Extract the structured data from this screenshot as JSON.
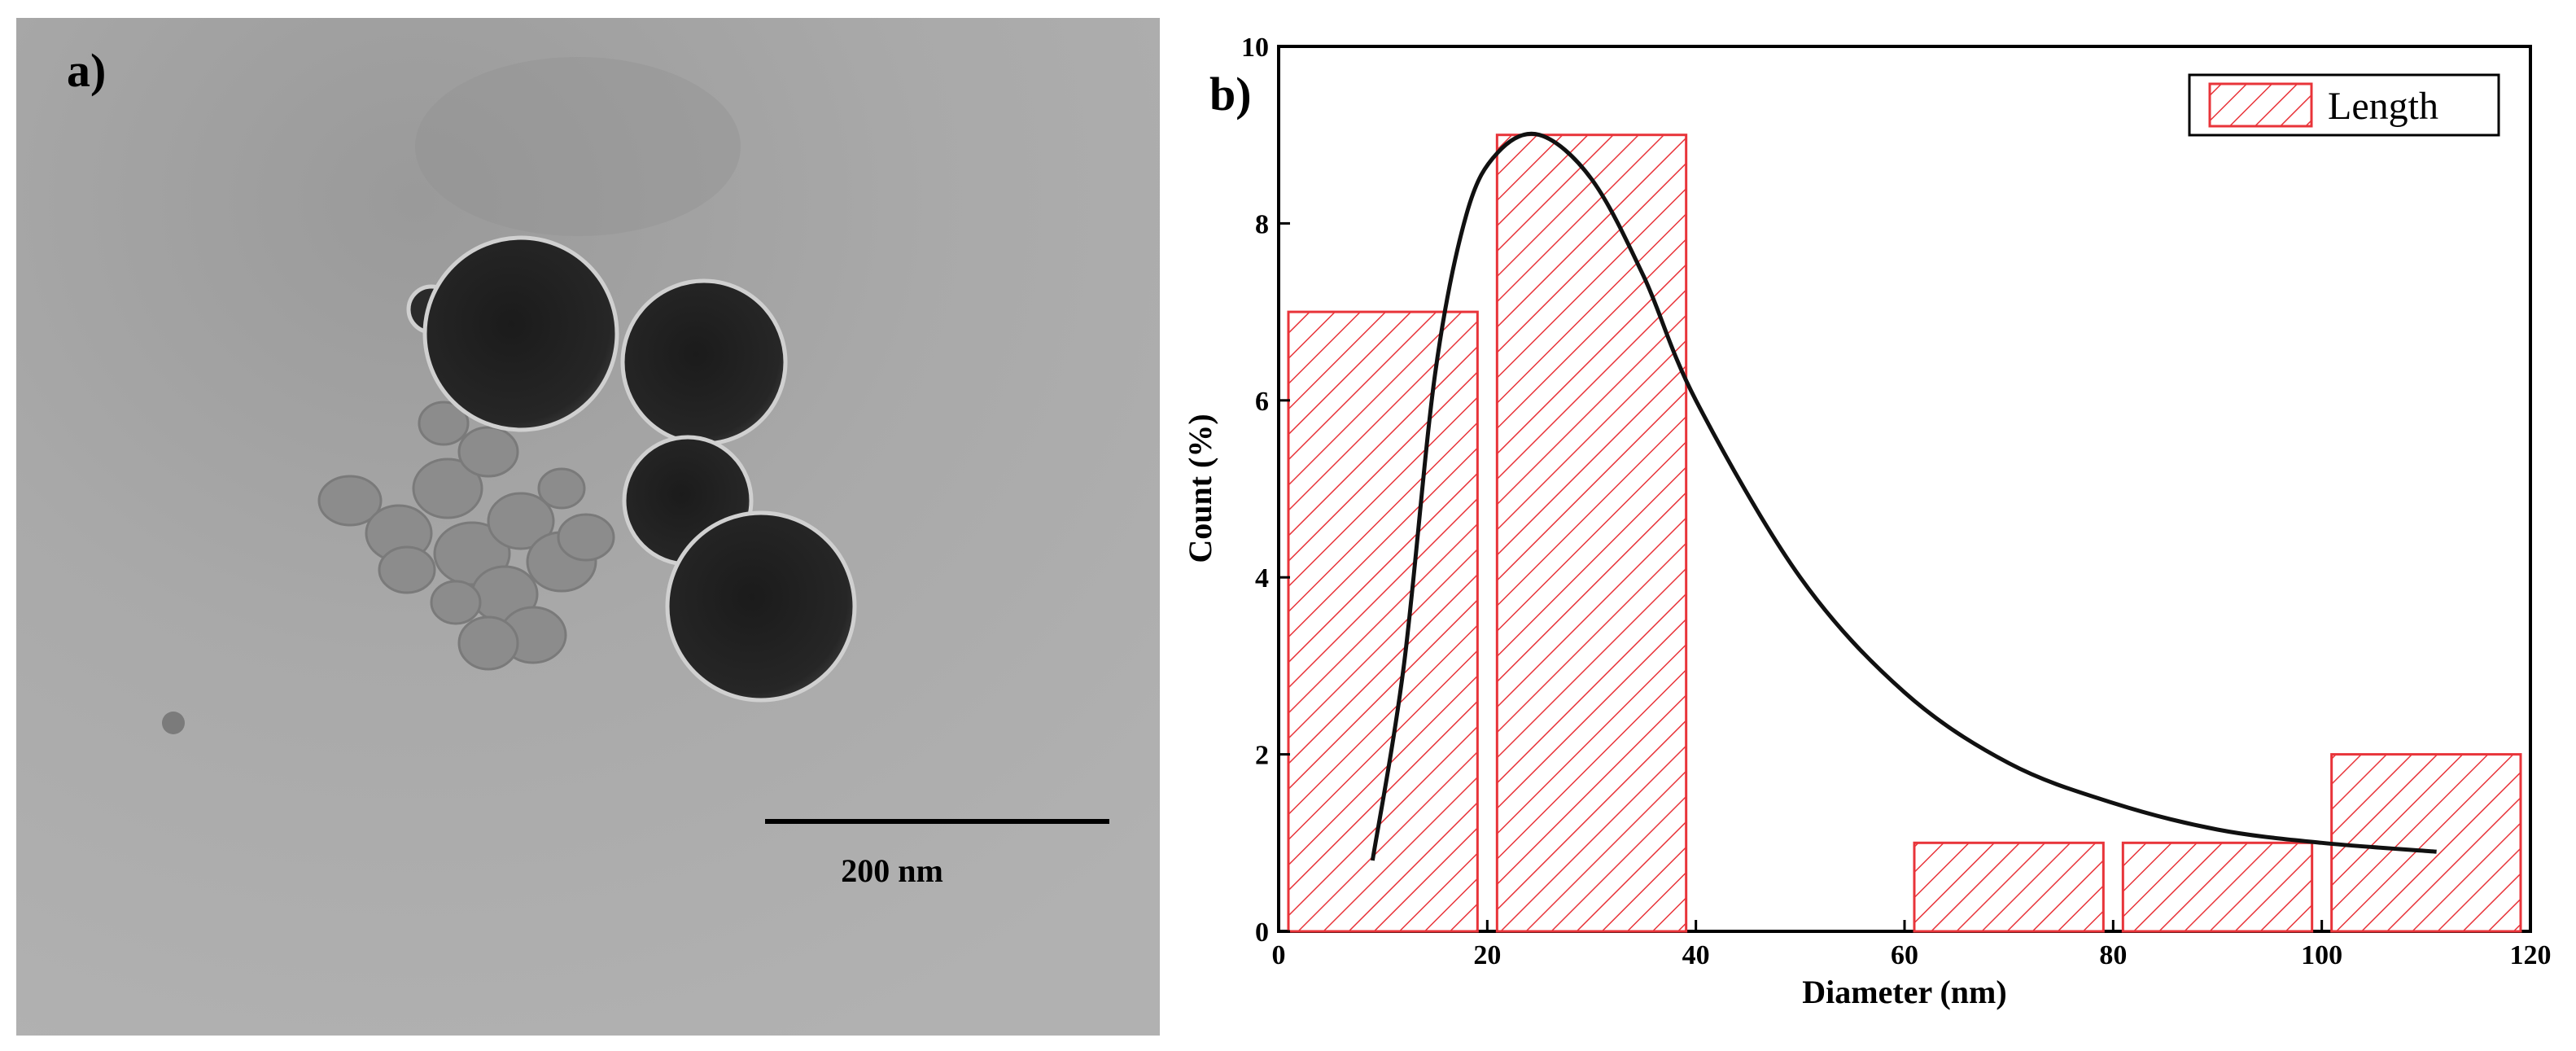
{
  "panel_a": {
    "label": "a)",
    "scale_bar_label": "200 nm"
  },
  "chart_data": {
    "type": "bar",
    "panel_label": "b)",
    "xlabel": "Diameter (nm)",
    "ylabel": "Count (%)",
    "xlim": [
      0,
      120
    ],
    "ylim": [
      0,
      10
    ],
    "x_ticks": [
      "0",
      "20",
      "40",
      "60",
      "80",
      "100",
      "120"
    ],
    "y_ticks": [
      "0",
      "2",
      "4",
      "6",
      "8",
      "10"
    ],
    "bins": [
      {
        "from": 0,
        "to": 20,
        "value": 7
      },
      {
        "from": 20,
        "to": 40,
        "value": 9
      },
      {
        "from": 40,
        "to": 60,
        "value": 0
      },
      {
        "from": 60,
        "to": 80,
        "value": 1
      },
      {
        "from": 80,
        "to": 100,
        "value": 1
      },
      {
        "from": 100,
        "to": 120,
        "value": 2
      }
    ],
    "series": [
      {
        "name": "Length"
      }
    ],
    "fit_curve": {
      "type": "log-normal",
      "points": [
        [
          9,
          0.8
        ],
        [
          12,
          3.0
        ],
        [
          15,
          6.3
        ],
        [
          18,
          8.1
        ],
        [
          21,
          8.8
        ],
        [
          25,
          9.0
        ],
        [
          30,
          8.5
        ],
        [
          35,
          7.4
        ],
        [
          40,
          6.0
        ],
        [
          50,
          4.0
        ],
        [
          60,
          2.7
        ],
        [
          70,
          1.9
        ],
        [
          80,
          1.45
        ],
        [
          90,
          1.15
        ],
        [
          100,
          1.0
        ],
        [
          111,
          0.9
        ]
      ]
    },
    "bar_fill": "#ffffff",
    "bar_hatch_color": "#e8343a",
    "bar_edge_color": "#e8343a",
    "curve_color": "#111111",
    "legend_position": "top-right",
    "grid": false
  }
}
